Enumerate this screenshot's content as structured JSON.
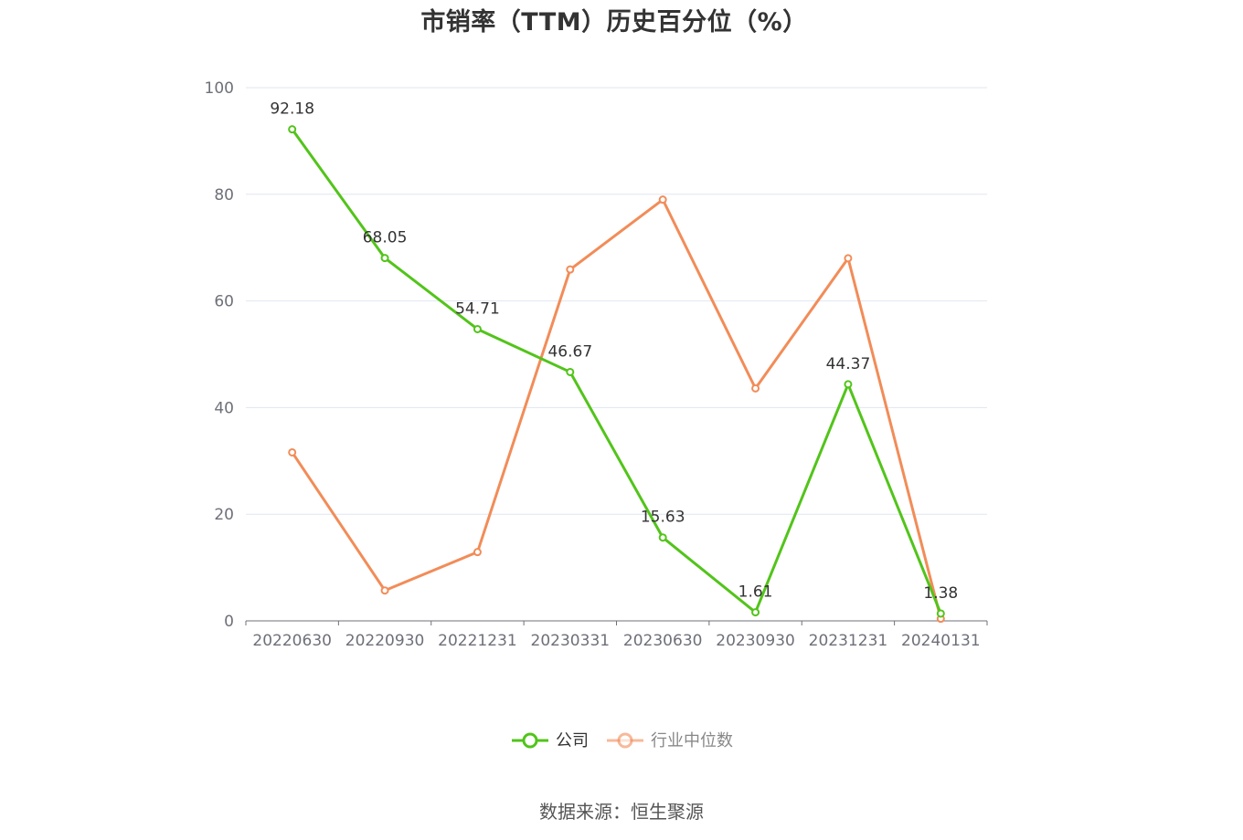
{
  "chart_data": {
    "type": "line",
    "title": "市销率（TTM）历史百分位（%）",
    "categories": [
      "20220630",
      "20220930",
      "20221231",
      "20230331",
      "20230630",
      "20230930",
      "20231231",
      "20240131"
    ],
    "ylim": [
      0,
      100
    ],
    "yticks": [
      0,
      20,
      40,
      60,
      80,
      100
    ],
    "grid": true,
    "legend_position": "bottom",
    "series": [
      {
        "name": "公司",
        "color": "#52c41a",
        "values": [
          92.18,
          68.05,
          54.71,
          46.67,
          15.63,
          1.61,
          44.37,
          1.38
        ],
        "labels": [
          "92.18",
          "68.05",
          "54.71",
          "46.67",
          "15.63",
          "1.61",
          "44.37",
          "1.38"
        ],
        "show_labels": true
      },
      {
        "name": "行业中位数",
        "color": "#f28c58",
        "values": [
          31.6,
          5.7,
          12.9,
          65.9,
          79.0,
          43.6,
          68.0,
          0.4
        ],
        "show_labels": false
      }
    ]
  },
  "footer": {
    "source": "数据来源：恒生聚源"
  }
}
